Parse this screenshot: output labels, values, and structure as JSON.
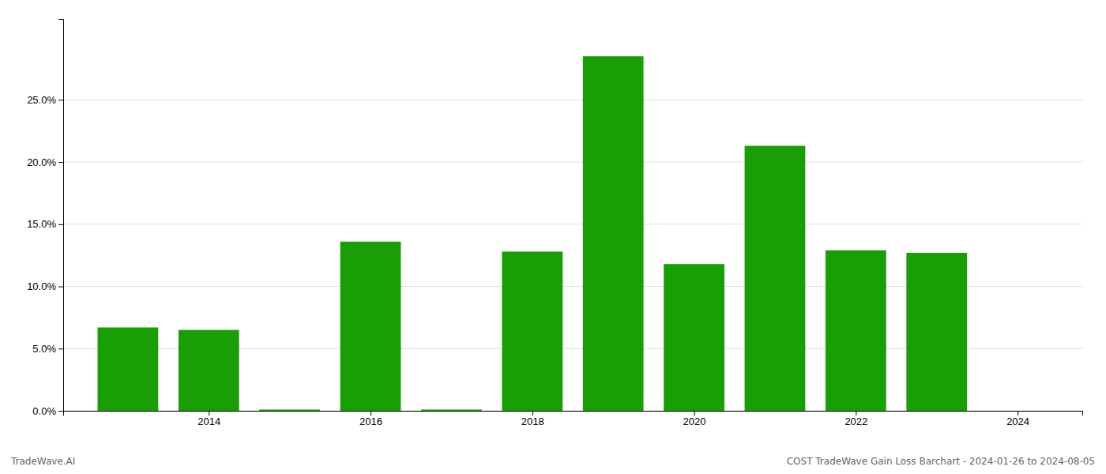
{
  "chart_data": {
    "type": "bar",
    "x": [
      2013,
      2014,
      2015,
      2016,
      2017,
      2018,
      2019,
      2020,
      2021,
      2022,
      2023
    ],
    "values": [
      0.067,
      0.065,
      0.001,
      0.136,
      0.001,
      0.128,
      0.285,
      0.118,
      0.213,
      0.129,
      0.127
    ],
    "color": "#1a9e06",
    "xlim": [
      2012.2,
      2024.8
    ],
    "xticks": [
      2014,
      2016,
      2018,
      2020,
      2022,
      2024
    ],
    "ylim": [
      0,
      0.315
    ],
    "yticks": [
      {
        "value": 0,
        "label": "0.0%"
      },
      {
        "value": 0.05,
        "label": "5.0%"
      },
      {
        "value": 0.1,
        "label": "10.0%"
      },
      {
        "value": 0.15,
        "label": "15.0%"
      },
      {
        "value": 0.2,
        "label": "20.0%"
      },
      {
        "value": 0.25,
        "label": "25.0%"
      }
    ],
    "grid": true,
    "annotations": [
      "TradeWave.AI",
      "COST TradeWave Gain Loss Barchart - 2024-01-26 to 2024-08-05"
    ]
  }
}
